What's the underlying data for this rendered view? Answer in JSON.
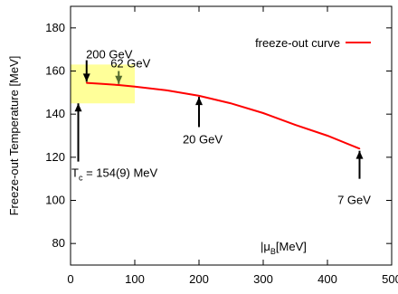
{
  "chart_data": {
    "type": "line",
    "xlabel_base": "μ",
    "xlabel_sub": "B",
    "xlabel_unit": "[MeV]",
    "ylabel": "Freeze-out Temperature [MeV]",
    "xlim": [
      0,
      500
    ],
    "ylim": [
      70,
      190
    ],
    "x_ticks": [
      0,
      100,
      200,
      300,
      400,
      500
    ],
    "y_ticks": [
      80,
      100,
      120,
      140,
      160,
      180
    ],
    "grid": false,
    "legend": "top-right",
    "series": [
      {
        "name": "freeze-out curve",
        "color": "#ff0000",
        "x": [
          25,
          50,
          75,
          100,
          150,
          200,
          250,
          300,
          350,
          400,
          450
        ],
        "y": [
          154.5,
          154,
          153.5,
          152.8,
          151,
          148.5,
          145,
          140.5,
          135,
          130,
          124
        ]
      }
    ],
    "tc_band": {
      "color": "#ffff99",
      "x": [
        0,
        100
      ],
      "y": [
        145,
        163
      ]
    },
    "annotations": [
      {
        "id": "ann-200gev",
        "text": "200 GeV",
        "x": 25,
        "arrow_from": 165,
        "arrow_to": 155
      },
      {
        "id": "ann-62gev",
        "text": "62 GeV",
        "x": 75,
        "arrow_from": 160,
        "arrow_to": 154
      },
      {
        "id": "ann-20gev",
        "text": "20 GeV",
        "x": 200,
        "arrow_from": 134,
        "arrow_to": 148
      },
      {
        "id": "ann-7gev",
        "text": "7 GeV",
        "x": 450,
        "arrow_from": 110,
        "arrow_to": 123
      },
      {
        "id": "ann-tc",
        "text_main": "T",
        "text_sub": "c",
        "text_rest": " = 154(9) MeV",
        "x": 12,
        "arrow_from": 118,
        "arrow_to": 145
      }
    ]
  }
}
